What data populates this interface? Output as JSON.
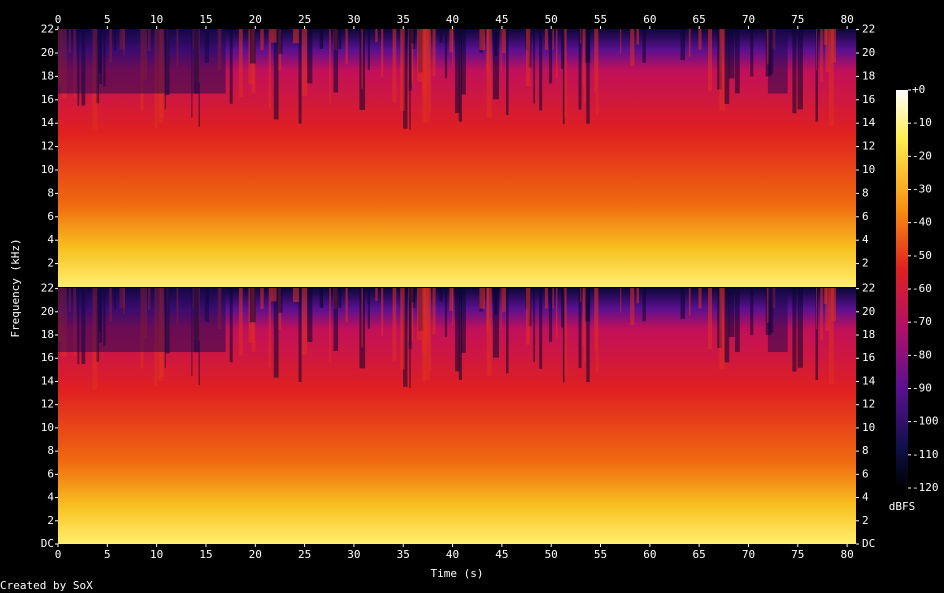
{
  "chart_data": {
    "type": "spectrogram",
    "x_label": "Time (s)",
    "y_label": "Frequency (kHz)",
    "xlim": [
      0,
      80.9
    ],
    "xticks": [
      0,
      5,
      10,
      15,
      20,
      25,
      30,
      35,
      40,
      45,
      50,
      55,
      60,
      65,
      70,
      75,
      80
    ],
    "channels": [
      {
        "ylim": [
          0,
          22.05
        ],
        "yticks": [
          2,
          4,
          6,
          8,
          10,
          12,
          14,
          16,
          18,
          20,
          22
        ]
      },
      {
        "ylim": [
          0,
          22.05
        ],
        "yticks": [
          {
            "value": 0,
            "label": "DC"
          },
          2,
          4,
          6,
          8,
          10,
          12,
          14,
          16,
          18,
          20,
          22
        ]
      }
    ],
    "colorbar": {
      "zlim": [
        -120,
        0
      ],
      "label": "dBFS",
      "zticks": [
        {
          "value": 0,
          "label": "+0"
        },
        -10,
        -20,
        -30,
        -40,
        -50,
        -60,
        -70,
        -80,
        -90,
        -100,
        -110,
        -120
      ]
    },
    "footer": "Created by SoX"
  }
}
